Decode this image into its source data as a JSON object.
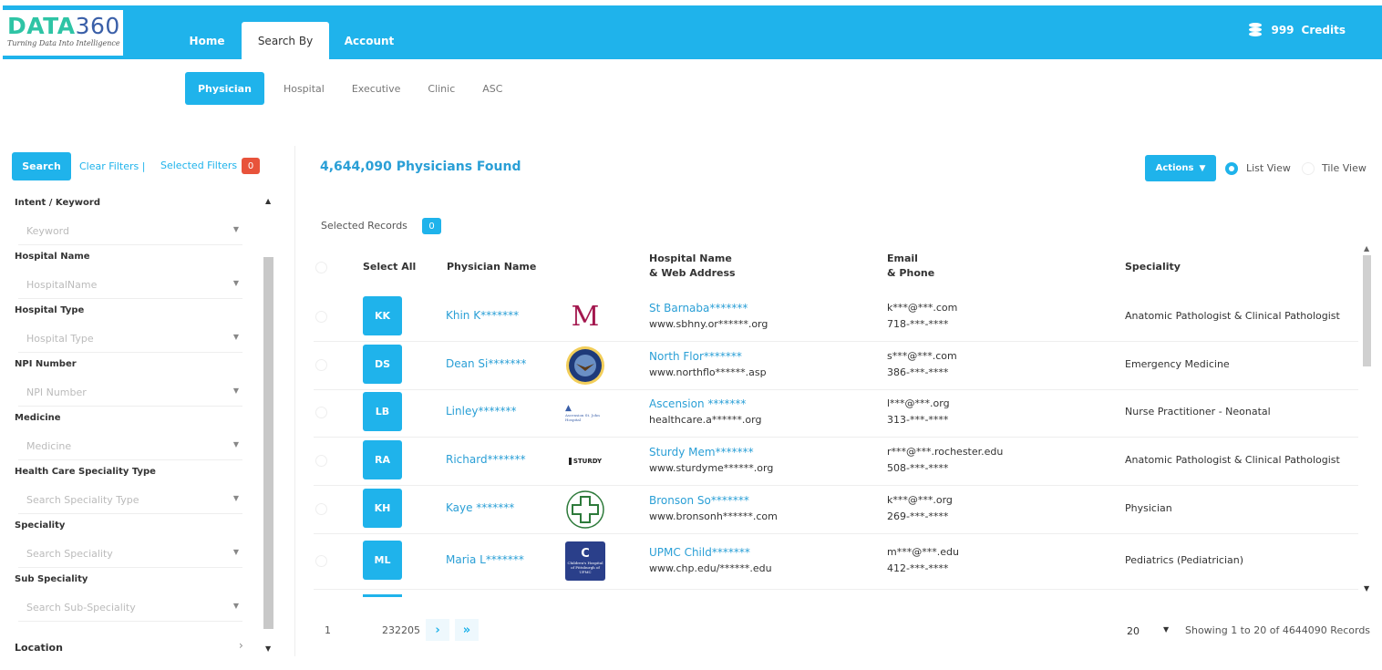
{
  "brand": {
    "name_part1": "DATA",
    "name_part2": "360",
    "tagline": "Turning Data Into Intelligence"
  },
  "nav": {
    "home": "Home",
    "search_by": "Search By",
    "account": "Account"
  },
  "credits": {
    "amount": "999",
    "label": "Credits"
  },
  "subtabs": [
    "Physician",
    "Hospital",
    "Executive",
    "Clinic",
    "ASC"
  ],
  "sidebar": {
    "search_button": "Search",
    "clear_filters": "Clear Filters",
    "separator": "|",
    "selected_filters": "Selected Filters",
    "selected_filters_count": "0",
    "filters": [
      {
        "label": "Intent / Keyword",
        "placeholder": "Keyword"
      },
      {
        "label": "Hospital Name",
        "placeholder": "HospitalName"
      },
      {
        "label": "Hospital Type",
        "placeholder": "Hospital Type"
      },
      {
        "label": "NPI Number",
        "placeholder": "NPI Number"
      },
      {
        "label": "Medicine",
        "placeholder": "Medicine"
      },
      {
        "label": "Health Care Speciality Type",
        "placeholder": "Search Speciality Type"
      },
      {
        "label": "Speciality",
        "placeholder": "Search Speciality"
      },
      {
        "label": "Sub Speciality",
        "placeholder": "Search Sub-Speciality"
      }
    ],
    "location": "Location"
  },
  "results": {
    "found": "4,644,090 Physicians Found",
    "actions": "Actions",
    "list_view": "List View",
    "tile_view": "Tile View",
    "selected_records_label": "Selected Records",
    "selected_records_count": "0"
  },
  "table": {
    "headers": {
      "select_all": "Select All",
      "physician": "Physician Name",
      "hospital_line1": "Hospital Name",
      "hospital_line2": "& Web Address",
      "email_line1": "Email",
      "email_line2": "& Phone",
      "speciality": "Speciality"
    },
    "rows": [
      {
        "initials": "KK",
        "name": "Khin K*******",
        "logo": "M",
        "hospital": "St Barnaba*******",
        "web": "www.sbhny.or******.org",
        "email": "k***@***.com",
        "phone": "718-***-****",
        "speciality": "Anatomic Pathologist & Clinical Pathologist"
      },
      {
        "initials": "DS",
        "name": "Dean Si*******",
        "logo": "va-seal",
        "hospital": "North Flor*******",
        "web": "www.northflo******.asp",
        "email": "s***@***.com",
        "phone": "386-***-****",
        "speciality": "Emergency Medicine"
      },
      {
        "initials": "LB",
        "name": "Linley*******",
        "logo": "Ascension St. John Hospital",
        "hospital": "Ascension *******",
        "web": "healthcare.a******.org",
        "email": "l***@***.org",
        "phone": "313-***-****",
        "speciality": "Nurse Practitioner - Neonatal"
      },
      {
        "initials": "RA",
        "name": "Richard*******",
        "logo": "STURDY",
        "hospital": "Sturdy Mem*******",
        "web": "www.sturdyme******.org",
        "email": "r***@***.rochester.edu",
        "phone": "508-***-****",
        "speciality": "Anatomic Pathologist & Clinical Pathologist"
      },
      {
        "initials": "KH",
        "name": "Kaye *******",
        "logo": "cross",
        "hospital": "Bronson So*******",
        "web": "www.bronsonh******.com",
        "email": "k***@***.org",
        "phone": "269-***-****",
        "speciality": "Physician"
      },
      {
        "initials": "ML",
        "name": "Maria L*******",
        "logo": "Children's Hospital of Pittsburgh of UPMC",
        "hospital": "UPMC Child*******",
        "web": "www.chp.edu/******.edu",
        "email": "m***@***.edu",
        "phone": "412-***-****",
        "speciality": "Pediatrics (Pediatrician)"
      }
    ]
  },
  "pagination": {
    "first": "1",
    "last": "232205",
    "next_icon": "chevron-right-icon",
    "last_icon": "double-chevron-right-icon",
    "per_page": "20",
    "showing": "Showing 1 to 20 of 4644090 Records"
  },
  "colors": {
    "primary": "#1fb3eb",
    "link": "#2a9fd6",
    "badge_red": "#e8533b"
  }
}
